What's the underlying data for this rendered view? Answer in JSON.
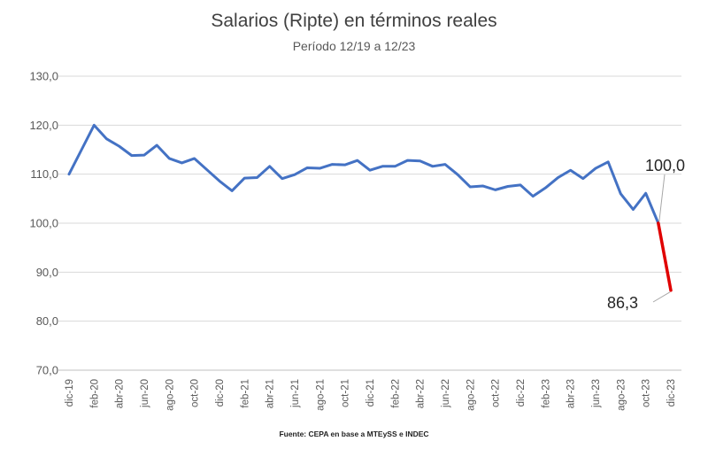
{
  "chart_data": {
    "type": "line",
    "title": "Salarios (Ripte) en términos reales",
    "subtitle": "Período 12/19 a 12/23",
    "source": "Fuente: CEPA en base a MTEySS e INDEC",
    "ylim": [
      70,
      130
    ],
    "yticks": [
      "70,0",
      "80,0",
      "90,0",
      "100,0",
      "110,0",
      "120,0",
      "130,0"
    ],
    "grid": true,
    "legend": "none",
    "x": [
      "dic-19",
      "ene-20",
      "feb-20",
      "mar-20",
      "abr-20",
      "may-20",
      "jun-20",
      "jul-20",
      "ago-20",
      "sep-20",
      "oct-20",
      "nov-20",
      "dic-20",
      "ene-21",
      "feb-21",
      "mar-21",
      "abr-21",
      "may-21",
      "jun-21",
      "jul-21",
      "ago-21",
      "sep-21",
      "oct-21",
      "nov-21",
      "dic-21",
      "ene-22",
      "feb-22",
      "mar-22",
      "abr-22",
      "may-22",
      "jun-22",
      "jul-22",
      "ago-22",
      "sep-22",
      "oct-22",
      "nov-22",
      "dic-22",
      "ene-23",
      "feb-23",
      "mar-23",
      "abr-23",
      "may-23",
      "jun-23",
      "jul-23",
      "ago-23",
      "sep-23",
      "oct-23",
      "nov-23",
      "dic-23"
    ],
    "x_labeled": [
      "dic-19",
      "feb-20",
      "abr-20",
      "jun-20",
      "ago-20",
      "oct-20",
      "dic-20",
      "feb-21",
      "abr-21",
      "jun-21",
      "ago-21",
      "oct-21",
      "dic-21",
      "feb-22",
      "abr-22",
      "jun-22",
      "ago-22",
      "oct-22",
      "dic-22",
      "feb-23",
      "abr-23",
      "jun-23",
      "ago-23",
      "oct-23",
      "dic-23"
    ],
    "series": [
      {
        "color": "#4472c4",
        "values": [
          110.0,
          115.0,
          120.0,
          117.2,
          115.7,
          113.8,
          113.9,
          115.9,
          113.2,
          112.3,
          113.2,
          110.9,
          108.6,
          106.6,
          109.2,
          109.3,
          111.6,
          109.1,
          109.9,
          111.3,
          111.2,
          112.0,
          111.9,
          112.8,
          110.8,
          111.6,
          111.6,
          112.8,
          112.7,
          111.6,
          112.0,
          109.9,
          107.4,
          107.6,
          106.8,
          107.5,
          107.8,
          105.5,
          107.2,
          109.3,
          110.8,
          109.1,
          111.2,
          112.5,
          106.0,
          102.8,
          106.1,
          100.0,
          null
        ]
      },
      {
        "color": "#e00000",
        "values": [
          null,
          null,
          null,
          null,
          null,
          null,
          null,
          null,
          null,
          null,
          null,
          null,
          null,
          null,
          null,
          null,
          null,
          null,
          null,
          null,
          null,
          null,
          null,
          null,
          null,
          null,
          null,
          null,
          null,
          null,
          null,
          null,
          null,
          null,
          null,
          null,
          null,
          null,
          null,
          null,
          null,
          null,
          null,
          null,
          null,
          null,
          null,
          100.0,
          86.3
        ]
      }
    ],
    "annotations": [
      "100,0",
      "86,3"
    ]
  }
}
